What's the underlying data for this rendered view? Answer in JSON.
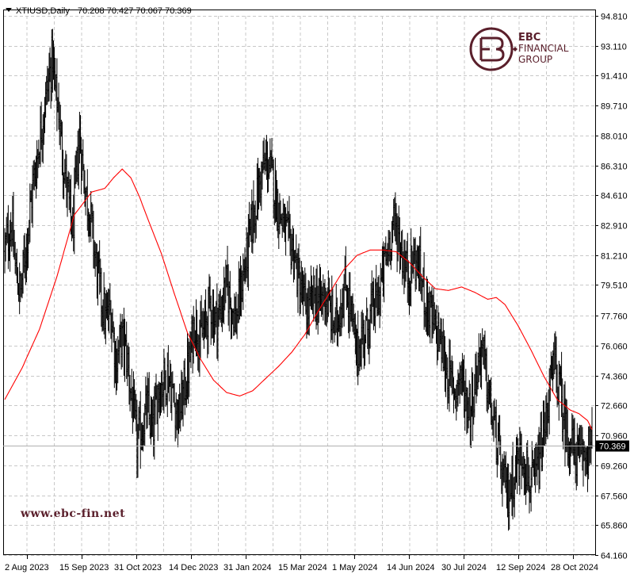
{
  "chart_data": {
    "type": "ohlc",
    "symbol_header": "XTIUSD,Daily",
    "ohlc_readout": "70.208 70.427 70.067 70.369",
    "last_price": 70.369,
    "last_price_label": "70.369",
    "ylim": [
      64.16,
      94.81
    ],
    "y_ticks": [
      "94.810",
      "93.110",
      "91.410",
      "89.710",
      "88.010",
      "86.310",
      "84.610",
      "82.910",
      "81.210",
      "79.510",
      "77.760",
      "76.060",
      "74.360",
      "72.660",
      "70.960",
      "69.260",
      "67.560",
      "65.860",
      "64.160"
    ],
    "y_tick_values": [
      94.81,
      93.11,
      91.41,
      89.71,
      88.01,
      86.31,
      84.61,
      82.91,
      81.21,
      79.51,
      77.76,
      76.06,
      74.36,
      72.66,
      70.96,
      69.26,
      67.56,
      65.86,
      64.16
    ],
    "x_ticks": [
      "2 Aug 2023",
      "15 Sep 2023",
      "31 Oct 2023",
      "14 Dec 2023",
      "31 Jan 2024",
      "15 Mar 2024",
      "1 May 2024",
      "14 Jun 2024",
      "30 Jul 2024",
      "12 Sep 2024",
      "28 Oct 2024"
    ],
    "grid": true,
    "bar_color": "#000000",
    "ma_color": "#ff0000",
    "grid_color": "#c8c8c8",
    "price_key_points": [
      [
        0,
        81.5
      ],
      [
        8,
        83.0
      ],
      [
        12,
        80.5
      ],
      [
        18,
        79.0
      ],
      [
        25,
        82.0
      ],
      [
        32,
        85.0
      ],
      [
        38,
        87.0
      ],
      [
        45,
        89.5
      ],
      [
        50,
        91.0
      ],
      [
        55,
        92.5
      ],
      [
        58,
        90.5
      ],
      [
        62,
        89.5
      ],
      [
        65,
        87.5
      ],
      [
        70,
        85.5
      ],
      [
        74,
        84.0
      ],
      [
        78,
        82.5
      ],
      [
        82,
        85.5
      ],
      [
        86,
        88.0
      ],
      [
        90,
        86.0
      ],
      [
        94,
        84.5
      ],
      [
        98,
        83.5
      ],
      [
        104,
        81.0
      ],
      [
        110,
        79.0
      ],
      [
        116,
        77.5
      ],
      [
        122,
        78.0
      ],
      [
        128,
        75.0
      ],
      [
        134,
        76.5
      ],
      [
        140,
        75.5
      ],
      [
        146,
        73.0
      ],
      [
        152,
        70.5
      ],
      [
        158,
        71.5
      ],
      [
        164,
        72.5
      ],
      [
        170,
        71.0
      ],
      [
        176,
        73.5
      ],
      [
        182,
        74.0
      ],
      [
        188,
        74.5
      ],
      [
        194,
        73.0
      ],
      [
        200,
        72.0
      ],
      [
        206,
        73.5
      ],
      [
        212,
        75.0
      ],
      [
        218,
        77.5
      ],
      [
        224,
        76.5
      ],
      [
        230,
        77.0
      ],
      [
        236,
        78.5
      ],
      [
        242,
        77.5
      ],
      [
        248,
        78.0
      ],
      [
        254,
        79.5
      ],
      [
        260,
        78.5
      ],
      [
        266,
        77.5
      ],
      [
        272,
        79.5
      ],
      [
        278,
        81.0
      ],
      [
        284,
        83.0
      ],
      [
        290,
        84.5
      ],
      [
        296,
        86.0
      ],
      [
        302,
        86.5
      ],
      [
        308,
        85.5
      ],
      [
        314,
        84.0
      ],
      [
        320,
        83.0
      ],
      [
        326,
        82.0
      ],
      [
        332,
        81.5
      ],
      [
        338,
        79.5
      ],
      [
        344,
        78.5
      ],
      [
        350,
        78.0
      ],
      [
        356,
        79.0
      ],
      [
        362,
        78.5
      ],
      [
        368,
        79.0
      ],
      [
        374,
        78.0
      ],
      [
        380,
        77.0
      ],
      [
        386,
        78.5
      ],
      [
        392,
        79.5
      ],
      [
        398,
        78.0
      ],
      [
        404,
        75.5
      ],
      [
        410,
        76.5
      ],
      [
        416,
        77.0
      ],
      [
        422,
        78.0
      ],
      [
        428,
        78.5
      ],
      [
        434,
        80.0
      ],
      [
        440,
        81.5
      ],
      [
        446,
        83.0
      ],
      [
        452,
        82.5
      ],
      [
        458,
        81.0
      ],
      [
        464,
        80.0
      ],
      [
        470,
        81.0
      ],
      [
        476,
        80.5
      ],
      [
        482,
        79.0
      ],
      [
        488,
        78.0
      ],
      [
        494,
        77.0
      ],
      [
        500,
        76.5
      ],
      [
        506,
        75.0
      ],
      [
        512,
        74.0
      ],
      [
        518,
        73.5
      ],
      [
        524,
        74.5
      ],
      [
        530,
        73.0
      ],
      [
        536,
        72.5
      ],
      [
        542,
        74.5
      ],
      [
        548,
        76.0
      ],
      [
        554,
        74.0
      ],
      [
        560,
        72.0
      ],
      [
        566,
        70.5
      ],
      [
        572,
        68.5
      ],
      [
        578,
        67.5
      ],
      [
        584,
        68.5
      ],
      [
        590,
        69.5
      ],
      [
        596,
        70.0
      ],
      [
        602,
        68.5
      ],
      [
        608,
        68.0
      ],
      [
        614,
        69.5
      ],
      [
        620,
        71.0
      ],
      [
        626,
        73.5
      ],
      [
        632,
        75.0
      ],
      [
        638,
        73.5
      ],
      [
        644,
        71.5
      ],
      [
        650,
        70.5
      ],
      [
        656,
        70.0
      ],
      [
        662,
        69.5
      ],
      [
        668,
        70.0
      ],
      [
        675,
        70.37
      ]
    ],
    "ma_key_points": [
      [
        0,
        73.0
      ],
      [
        20,
        74.8
      ],
      [
        40,
        77.0
      ],
      [
        60,
        80.0
      ],
      [
        80,
        83.5
      ],
      [
        100,
        84.8
      ],
      [
        115,
        85.0
      ],
      [
        125,
        85.6
      ],
      [
        135,
        86.1
      ],
      [
        145,
        85.6
      ],
      [
        155,
        84.5
      ],
      [
        165,
        83.2
      ],
      [
        180,
        81.3
      ],
      [
        195,
        79.0
      ],
      [
        210,
        76.8
      ],
      [
        225,
        75.3
      ],
      [
        240,
        74.1
      ],
      [
        255,
        73.4
      ],
      [
        270,
        73.2
      ],
      [
        285,
        73.5
      ],
      [
        300,
        74.2
      ],
      [
        315,
        74.9
      ],
      [
        330,
        75.7
      ],
      [
        345,
        76.7
      ],
      [
        360,
        78.0
      ],
      [
        375,
        79.2
      ],
      [
        390,
        80.4
      ],
      [
        405,
        81.2
      ],
      [
        420,
        81.5
      ],
      [
        435,
        81.5
      ],
      [
        450,
        81.4
      ],
      [
        465,
        80.8
      ],
      [
        480,
        80.0
      ],
      [
        495,
        79.3
      ],
      [
        510,
        79.2
      ],
      [
        525,
        79.4
      ],
      [
        540,
        79.1
      ],
      [
        555,
        78.7
      ],
      [
        565,
        78.8
      ],
      [
        575,
        78.4
      ],
      [
        590,
        77.2
      ],
      [
        605,
        75.8
      ],
      [
        620,
        74.3
      ],
      [
        635,
        73.0
      ],
      [
        650,
        72.4
      ],
      [
        660,
        72.2
      ],
      [
        670,
        71.8
      ],
      [
        675,
        71.3
      ]
    ]
  },
  "watermark": {
    "brand_line1": "EBC",
    "brand_line2": "FINANCIAL",
    "brand_line3": "GROUP",
    "url": "www.ebc-fin.net"
  }
}
